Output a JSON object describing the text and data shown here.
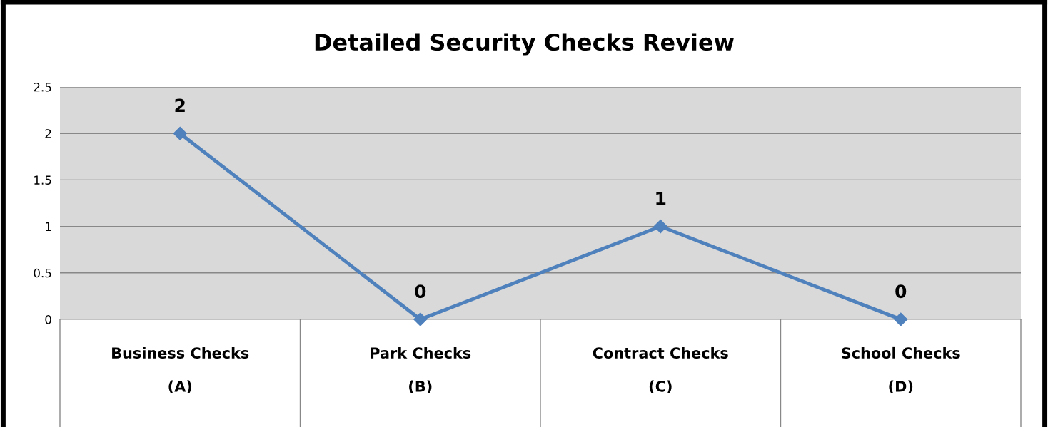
{
  "chart_data": {
    "type": "line",
    "title": "Detailed Security Checks Review",
    "categories": [
      "Business Checks\n\n(A)",
      "Park Checks\n\n(B)",
      "Contract Checks\n\n(C)",
      "School Checks\n\n(D)"
    ],
    "series": [
      {
        "color": "#4f81bd",
        "values": [
          2,
          0,
          1,
          0
        ]
      }
    ],
    "ylim": [
      0,
      2.5
    ],
    "yticks": [
      0,
      0.5,
      1,
      1.5,
      2,
      2.5
    ],
    "grid": "y",
    "marker": "diamond",
    "line_style": "solid",
    "data_labels": true
  }
}
